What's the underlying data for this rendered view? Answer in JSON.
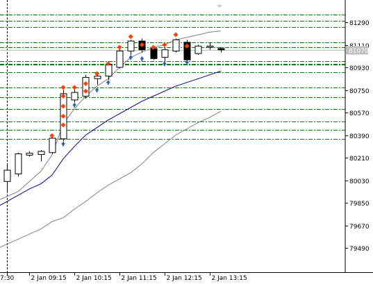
{
  "chart_data": {
    "type": "candlestick",
    "title": "",
    "timeframe_note": "15-minute candles",
    "y_axis": {
      "ylim": [
        79320,
        81380
      ],
      "tick_values": [
        81290,
        81110,
        80930,
        80750,
        80570,
        80390,
        80210,
        80030,
        79850,
        79670,
        79490
      ],
      "tick_labels": [
        "81290",
        "81110",
        "80930",
        "80750",
        "80570",
        "80390",
        "80210",
        "80030",
        "79850",
        "79670",
        "79490"
      ],
      "current_price": 81070,
      "current_price_label": "81070"
    },
    "x_axis": {
      "tick_labels": [
        {
          "label": "7:30",
          "bar": 0
        },
        {
          "label": "2 Jan 09:15",
          "bar": 2
        },
        {
          "label": "2 Jan 10:15",
          "bar": 6
        },
        {
          "label": "2 Jan 11:15",
          "bar": 10
        },
        {
          "label": "2 Jan 12:15",
          "bar": 14
        },
        {
          "label": "2 Jan 13:15",
          "bar": 18
        }
      ],
      "bar_count": 20
    },
    "candles": [
      {
        "open": 80020,
        "high": 80150,
        "low": 79940,
        "close": 80110
      },
      {
        "open": 80080,
        "high": 80250,
        "low": 80060,
        "close": 80240
      },
      {
        "open": 80230,
        "high": 80260,
        "low": 80220,
        "close": 80245
      },
      {
        "open": 80235,
        "high": 80270,
        "low": 80180,
        "close": 80260
      },
      {
        "open": 80250,
        "high": 80390,
        "low": 80240,
        "close": 80365
      },
      {
        "open": 80360,
        "high": 80750,
        "low": 80340,
        "close": 80720
      },
      {
        "open": 80670,
        "high": 80760,
        "low": 80650,
        "close": 80730
      },
      {
        "open": 80700,
        "high": 80870,
        "low": 80680,
        "close": 80850
      },
      {
        "open": 80840,
        "high": 80880,
        "low": 80790,
        "close": 80860
      },
      {
        "open": 80860,
        "high": 80960,
        "low": 80830,
        "close": 80950
      },
      {
        "open": 80930,
        "high": 81080,
        "low": 80920,
        "close": 81060
      },
      {
        "open": 81060,
        "high": 81150,
        "low": 81030,
        "close": 81140
      },
      {
        "open": 81140,
        "high": 81160,
        "low": 81050,
        "close": 81070
      },
      {
        "open": 81080,
        "high": 81090,
        "low": 80990,
        "close": 81000
      },
      {
        "open": 81010,
        "high": 81090,
        "low": 80980,
        "close": 81070
      },
      {
        "open": 81060,
        "high": 81160,
        "low": 81050,
        "close": 81150
      },
      {
        "open": 81130,
        "high": 81150,
        "low": 80990,
        "close": 80990
      },
      {
        "open": 81040,
        "high": 81110,
        "low": 81030,
        "close": 81100
      },
      {
        "open": 81090,
        "high": 81130,
        "low": 81070,
        "close": 81100
      },
      {
        "open": 81080,
        "high": 81090,
        "low": 81050,
        "close": 81070
      }
    ],
    "series": [
      {
        "name": "Upper band",
        "color": "#808080",
        "values": [
          79900,
          79940,
          80020,
          80100,
          80230,
          80480,
          80600,
          80700,
          80780,
          80840,
          80930,
          81010,
          81050,
          81090,
          81110,
          81150,
          81170,
          81190,
          81210,
          81220
        ]
      },
      {
        "name": "Moving average",
        "color": "#00008b",
        "values": [
          79860,
          79910,
          79960,
          80000,
          80070,
          80200,
          80300,
          80390,
          80450,
          80510,
          80560,
          80610,
          80660,
          80700,
          80740,
          80780,
          80810,
          80840,
          80870,
          80900
        ]
      },
      {
        "name": "Lower band",
        "color": "#808080",
        "values": [
          79520,
          79560,
          79600,
          79640,
          79700,
          79730,
          79800,
          79860,
          79930,
          79990,
          80040,
          80090,
          80160,
          80250,
          80320,
          80390,
          80440,
          80490,
          80530,
          80580
        ]
      }
    ],
    "horizontal_levels": {
      "color": "#008000",
      "values": [
        81350,
        81300,
        81250,
        81130,
        81090,
        80980,
        80960,
        80950,
        80890,
        80770,
        80690,
        80600,
        80500,
        80430,
        80360
      ]
    },
    "markers": {
      "red_diamond_color": "#ff4000",
      "blue_arrow_color": "#1e5fb4",
      "red_diamonds": [
        {
          "bar": 4,
          "price": 80385
        },
        {
          "bar": 5,
          "price": 80470
        },
        {
          "bar": 5,
          "price": 80540
        },
        {
          "bar": 5,
          "price": 80620
        },
        {
          "bar": 5,
          "price": 80700
        },
        {
          "bar": 5,
          "price": 80770
        },
        {
          "bar": 6,
          "price": 80770
        },
        {
          "bar": 7,
          "price": 80740
        },
        {
          "bar": 7,
          "price": 80800
        },
        {
          "bar": 8,
          "price": 80880
        },
        {
          "bar": 9,
          "price": 80960
        },
        {
          "bar": 10,
          "price": 81090
        },
        {
          "bar": 11,
          "price": 81175
        },
        {
          "bar": 12,
          "price": 81110
        },
        {
          "bar": 13,
          "price": 81090
        },
        {
          "bar": 14,
          "price": 81110
        },
        {
          "bar": 15,
          "price": 81190
        },
        {
          "bar": 16,
          "price": 81100
        }
      ],
      "blue_arrows": [
        {
          "bar": 5,
          "price": 80320
        },
        {
          "bar": 6,
          "price": 80630
        },
        {
          "bar": 8,
          "price": 80750
        },
        {
          "bar": 9,
          "price": 80810
        },
        {
          "bar": 11,
          "price": 81010
        },
        {
          "bar": 12,
          "price": 81000
        },
        {
          "bar": 14,
          "price": 80960
        },
        {
          "bar": 16,
          "price": 80970
        }
      ]
    },
    "vertical_line": {
      "bar": 0,
      "style": "dashed",
      "color": "#000000"
    }
  }
}
